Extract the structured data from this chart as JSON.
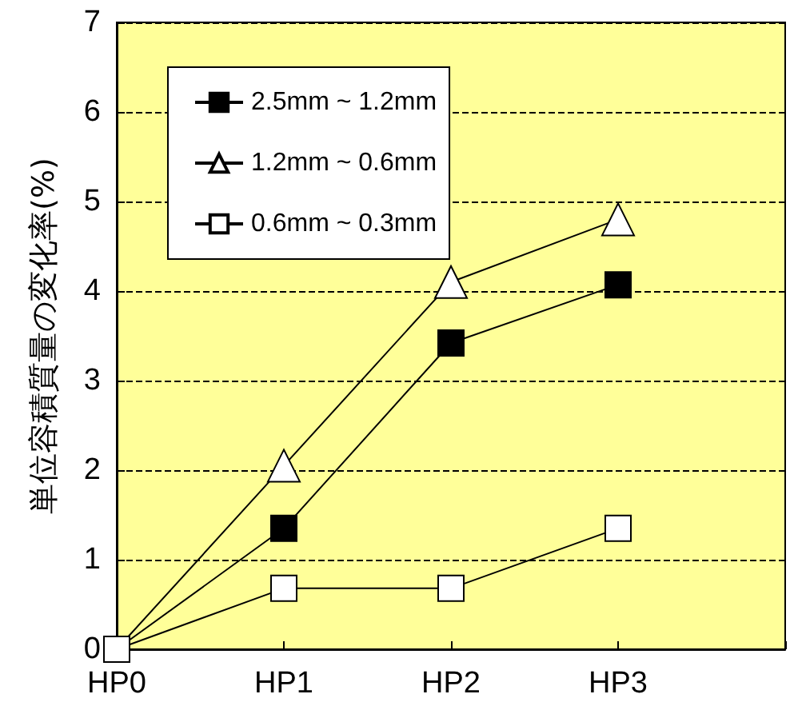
{
  "chart_data": {
    "type": "line",
    "ylabel": "単位容積質量の変化率(%)",
    "categories": [
      "HP0",
      "HP1",
      "HP2",
      "HP3",
      null
    ],
    "ylim": [
      0,
      7
    ],
    "yticks": [
      0,
      1,
      2,
      3,
      4,
      5,
      6,
      7
    ],
    "grid": "y",
    "legend": "top left",
    "line_style": "solid",
    "series": [
      {
        "name": "2.5mm ~ 1.2mm",
        "color": "#000000",
        "marker": "square",
        "values": [
          0,
          1.35,
          3.42,
          4.07,
          null
        ]
      },
      {
        "name": "1.2mm ~ 0.6mm",
        "color": "#ffffff",
        "marker": "triangle",
        "values": [
          0,
          2.05,
          4.1,
          4.8,
          null
        ]
      },
      {
        "name": "0.6mm ~ 0.3mm",
        "color": "#ffffff",
        "marker": "square",
        "values": [
          0,
          0.68,
          0.68,
          1.35,
          null
        ]
      }
    ]
  }
}
